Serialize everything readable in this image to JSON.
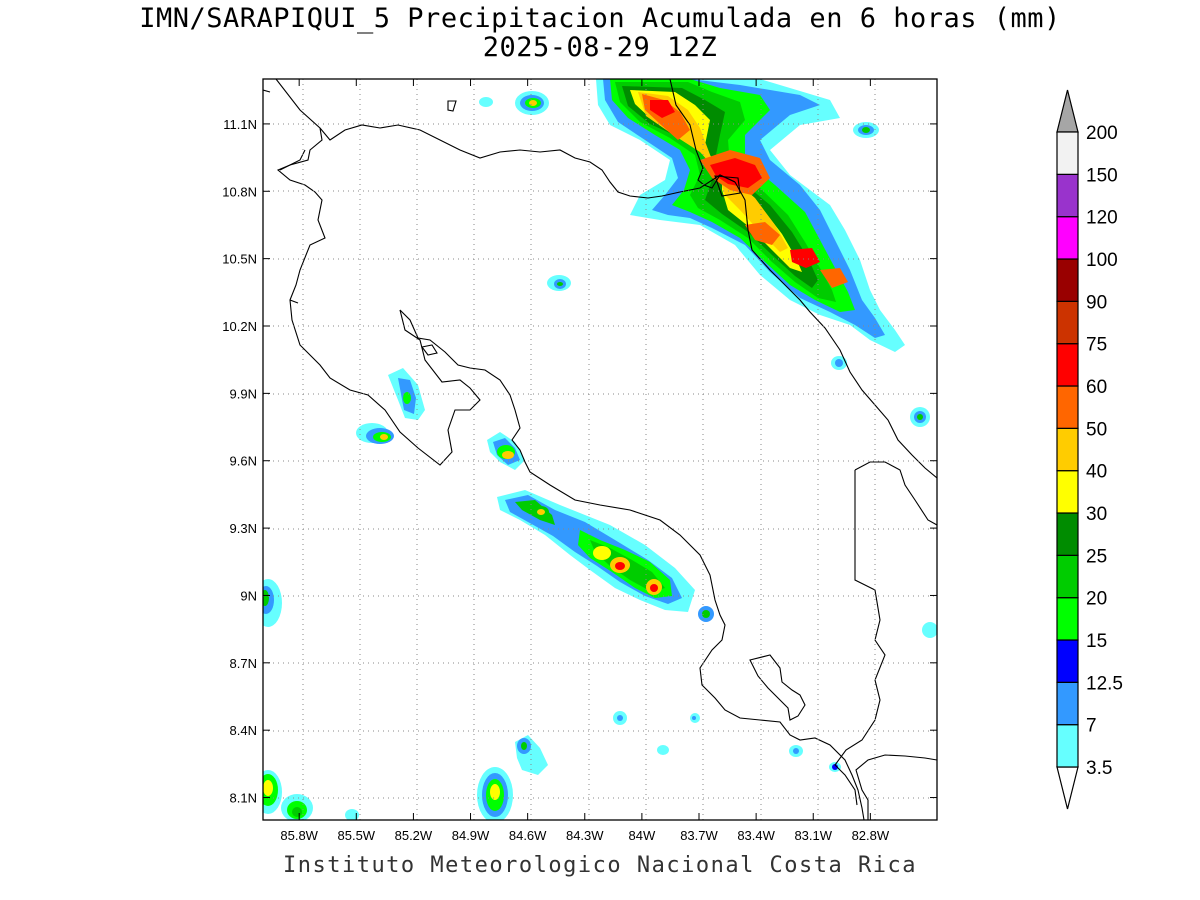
{
  "title_line1": "IMN/SARAPIQUI_5 Precipitacion Acumulada en 6 horas (mm)",
  "title_line2": "2025-08-29 12Z",
  "credit": "Instituto Meteorologico Nacional Costa Rica",
  "map": {
    "lon_ticks": [
      "85.8W",
      "85.5W",
      "85.2W",
      "84.9W",
      "84.6W",
      "84.3W",
      "84W",
      "83.7W",
      "83.4W",
      "83.1W",
      "82.8W"
    ],
    "lat_ticks": [
      "11.1N",
      "10.8N",
      "10.5N",
      "10.2N",
      "9.9N",
      "9.6N",
      "9.3N",
      "9N",
      "8.7N",
      "8.4N",
      "8.1N"
    ],
    "lon_values": [
      -85.8,
      -85.5,
      -85.2,
      -84.9,
      -84.6,
      -84.3,
      -84.0,
      -83.7,
      -83.4,
      -83.1,
      -82.8
    ],
    "lat_values": [
      11.1,
      10.8,
      10.5,
      10.2,
      9.9,
      9.6,
      9.3,
      9.0,
      8.7,
      8.4,
      8.1
    ],
    "lon_range": [
      -85.99,
      -82.45
    ],
    "lat_range": [
      8.0,
      11.3
    ],
    "grid": "dotted"
  },
  "colorbar": {
    "levels": [
      "3.5",
      "7",
      "12.5",
      "15",
      "20",
      "25",
      "30",
      "40",
      "50",
      "60",
      "75",
      "90",
      "100",
      "120",
      "150",
      "200"
    ],
    "colors": [
      "#ffffff",
      "#66ffff",
      "#3399ff",
      "#0000ff",
      "#00ff00",
      "#00cc00",
      "#008c00",
      "#ffff00",
      "#ffcc00",
      "#ff6600",
      "#ff0000",
      "#cc3300",
      "#990000",
      "#ff00ff",
      "#9933cc",
      "#f2f2f2",
      "#a6a6a6"
    ]
  }
}
